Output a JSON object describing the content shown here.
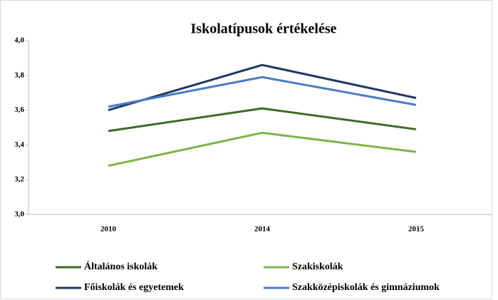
{
  "chart_data": {
    "type": "line",
    "title": "Iskolatípusok értékelése",
    "categories": [
      "2010",
      "2014",
      "2015"
    ],
    "series": [
      {
        "name": "Általános iskolák",
        "color": "#3e6b26",
        "values": [
          3.48,
          3.61,
          3.49
        ]
      },
      {
        "name": "Szakiskolák",
        "color": "#7ab648",
        "values": [
          3.28,
          3.47,
          3.36
        ]
      },
      {
        "name": "Főiskolák és egyetemek",
        "color": "#1f3864",
        "values": [
          3.6,
          3.86,
          3.67
        ]
      },
      {
        "name": "Szakközépiskolák és gimnáziumok",
        "color": "#4a7bc8",
        "values": [
          3.62,
          3.79,
          3.63
        ]
      }
    ],
    "ylim": [
      3,
      4
    ],
    "yticks": [
      {
        "value": 3,
        "label": "3,0"
      },
      {
        "value": 3.2,
        "label": "3,2"
      },
      {
        "value": 3.4,
        "label": "3,4"
      },
      {
        "value": 3.6,
        "label": "3,6"
      },
      {
        "value": 3.8,
        "label": "3,8"
      },
      {
        "value": 4,
        "label": "4,0"
      }
    ],
    "grid": false
  }
}
